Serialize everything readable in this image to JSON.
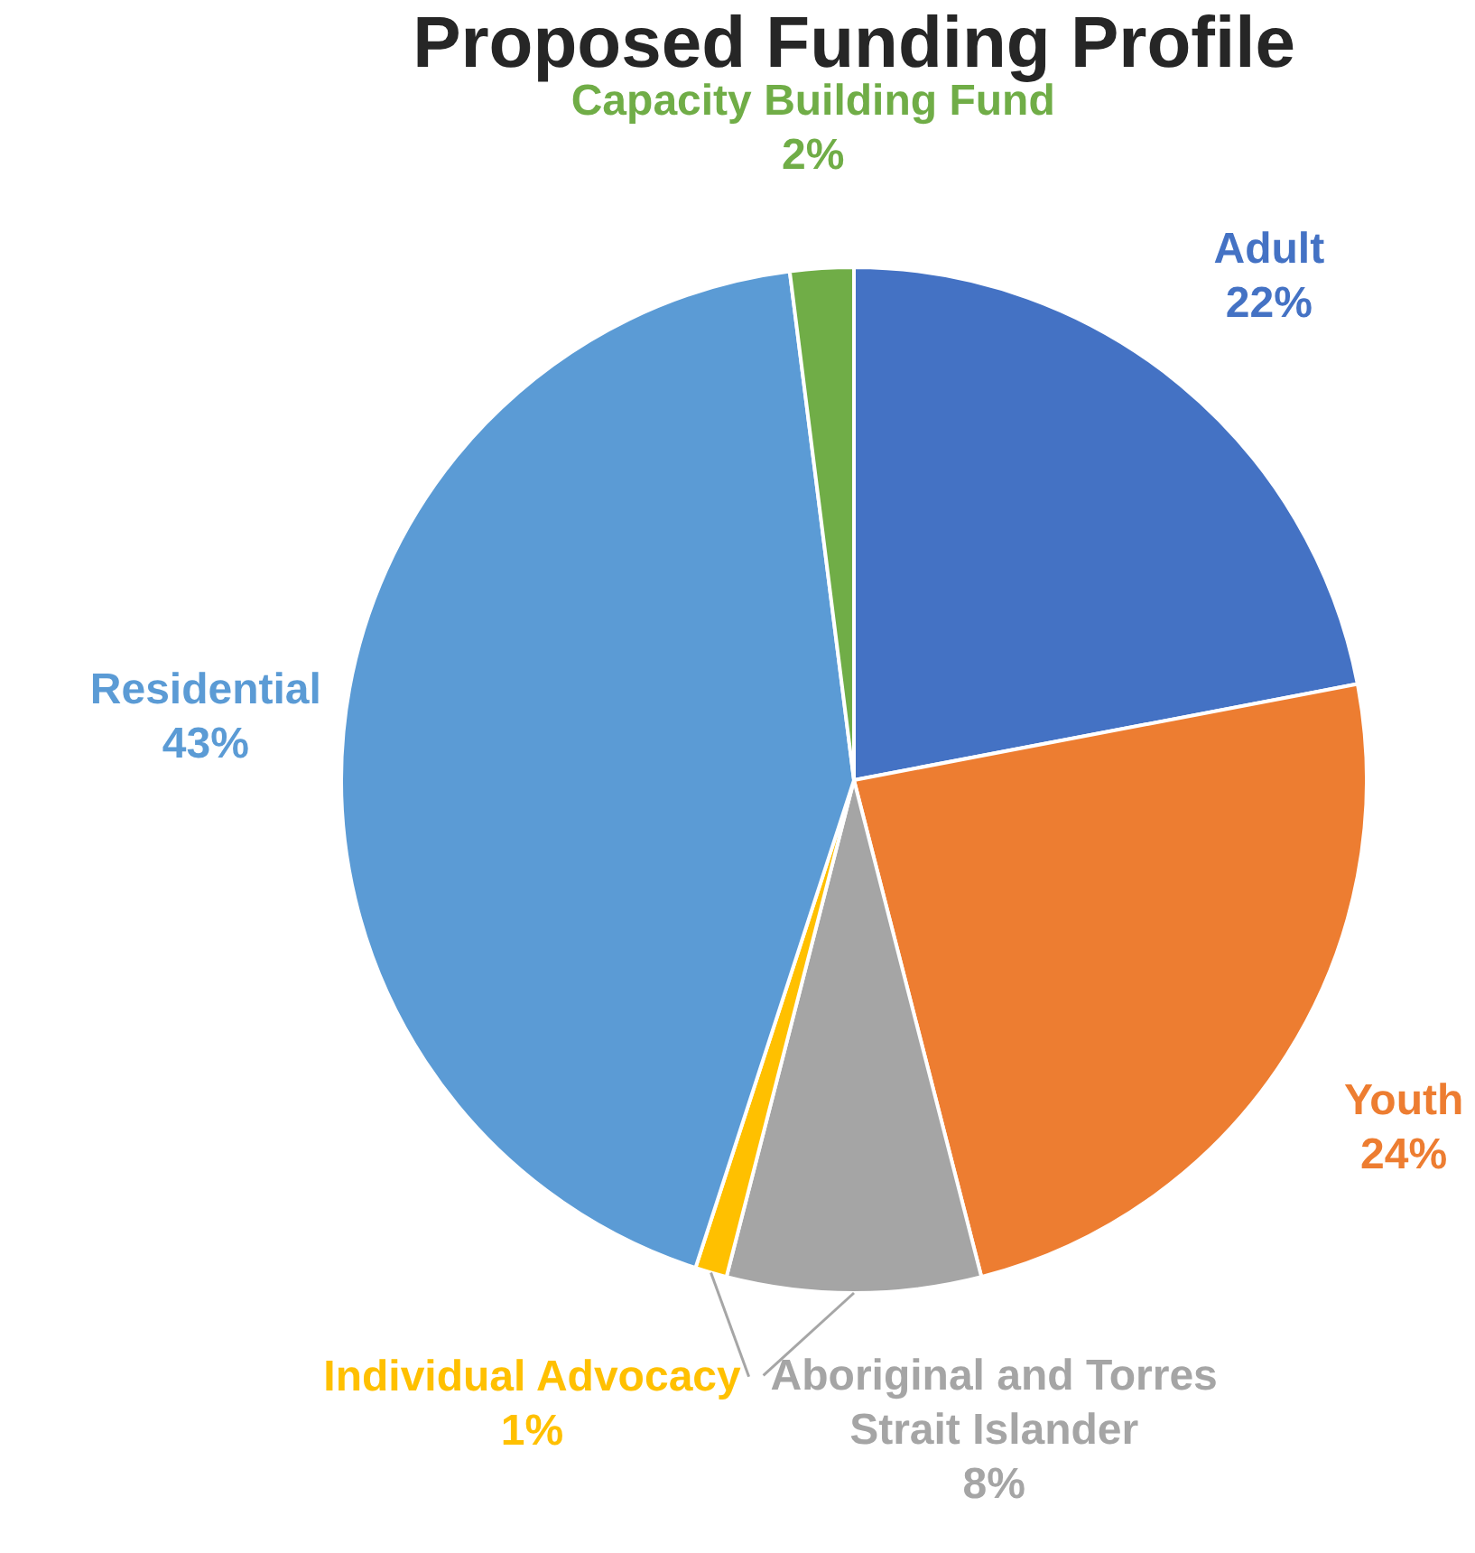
{
  "chart_data": {
    "type": "pie",
    "title": "Proposed Funding Profile",
    "categories": [
      "Adult",
      "Youth",
      "Aboriginal and Torres Strait Islander",
      "Individual Advocacy",
      "Residential",
      "Capacity Building Fund"
    ],
    "values": [
      22,
      24,
      8,
      1,
      43,
      2
    ],
    "value_labels": [
      "22%",
      "24%",
      "8%",
      "1%",
      "43%",
      "2%"
    ],
    "colors": [
      "#4472c4",
      "#ed7d31",
      "#a5a5a5",
      "#ffc000",
      "#5b9bd5",
      "#70ad47"
    ],
    "legend": false
  }
}
